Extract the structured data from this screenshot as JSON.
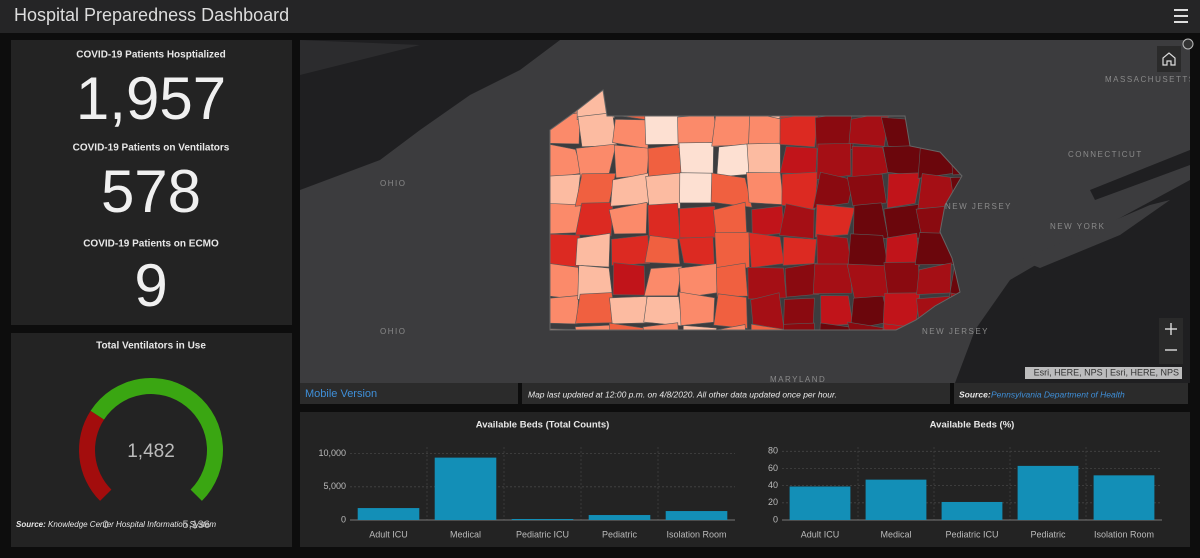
{
  "header": {
    "title": "Hospital Preparedness Dashboard"
  },
  "indicators": [
    {
      "label": "COVID-19 Patients Hosptialized",
      "value": "1,957"
    },
    {
      "label": "COVID-19 Patients on Ventilators",
      "value": "578"
    },
    {
      "label": "COVID-19 Patients on ECMO",
      "value": "9"
    }
  ],
  "map": {
    "labels": [
      "MASSACHUSETTS",
      "CONNECTICUT",
      "OHIO",
      "NEW JERSEY",
      "NEW YORK",
      "OHIO",
      "NEW JERSEY",
      "MARYLAND"
    ],
    "attribution": "Esri, HERE, NPS | Esri, HERE, NPS",
    "footer": {
      "link": "Mobile Version",
      "note": "Map last updated at 12:00 p.m. on 4/8/2020. All other data updated once per hour.",
      "source_label": "Source:",
      "source": "Pennsylvania Department of Health"
    }
  },
  "chart_data": [
    {
      "type": "gauge",
      "title": "Total Ventilators in Use",
      "values": [
        1482
      ],
      "value_labels": [
        "1,482"
      ],
      "color": "#a30d0d",
      "track_color": "#3aa612",
      "ylim": [
        0,
        5136
      ],
      "yticks": [
        0,
        {
          "value": 5136,
          "label": "5,136"
        }
      ],
      "source_label": "Source:",
      "source": "Knowledge Center Hospital Information System"
    },
    {
      "type": "bar",
      "title": "Available Beds (Total Counts)",
      "categories": [
        "Adult ICU",
        "Medical",
        "Pediatric ICU",
        "Pediatric",
        "Isolation Room"
      ],
      "values": [
        1800,
        9400,
        150,
        750,
        1350
      ],
      "color": "#138fb7",
      "ylim": [
        0,
        11000
      ],
      "yticks": [
        0,
        {
          "value": 5000,
          "label": "5,000"
        },
        {
          "value": 10000,
          "label": "10,000"
        }
      ],
      "grid": true
    },
    {
      "type": "bar",
      "title": "Available Beds (%)",
      "categories": [
        "Adult ICU",
        "Medical",
        "Pediatric ICU",
        "Pediatric",
        "Isolation Room"
      ],
      "values": [
        39,
        47,
        21,
        63,
        52
      ],
      "color": "#138fb7",
      "ylim": [
        0,
        85
      ],
      "yticks": [
        0,
        20,
        40,
        60,
        80
      ],
      "grid": true
    }
  ]
}
